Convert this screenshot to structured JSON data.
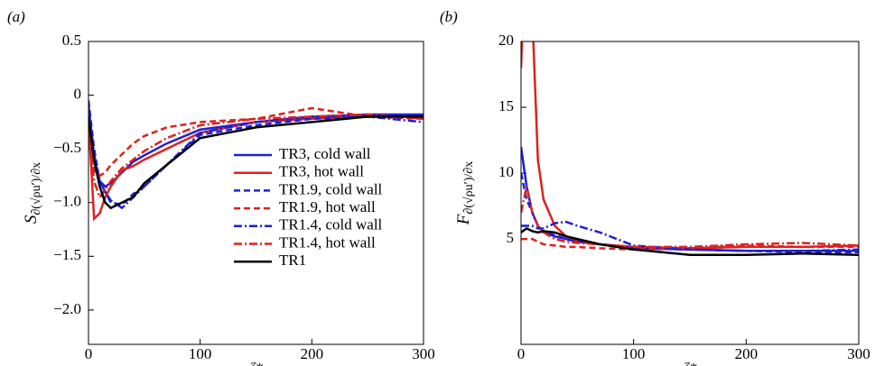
{
  "chart_data": [
    {
      "type": "line",
      "panel_label": "(a)",
      "xlabel": "ζ*",
      "ylabel": "S",
      "ylabel_sub": "∂(√ρu′)/∂x",
      "x": [
        0,
        5,
        10,
        15,
        20,
        30,
        40,
        50,
        70,
        100,
        150,
        200,
        250,
        300
      ],
      "xlim": [
        0,
        300
      ],
      "xticks": [
        0,
        100,
        200,
        300
      ],
      "ylim": [
        -2.32,
        0.5
      ],
      "yticks": [
        {
          "value": -2.0,
          "label": "−2.0"
        },
        {
          "value": -1.5,
          "label": "−1.5"
        },
        {
          "value": -1.0,
          "label": "−1.0"
        },
        {
          "value": -0.5,
          "label": "−0.5"
        },
        0,
        0.5
      ],
      "legend": "right",
      "series": [
        {
          "name": "TR3, cold wall",
          "color": "#1f1fd6",
          "dash": "solid",
          "values": [
            -0.1,
            -0.6,
            -0.8,
            -0.85,
            -0.82,
            -0.72,
            -0.62,
            -0.56,
            -0.45,
            -0.32,
            -0.25,
            -0.2,
            -0.18,
            -0.18
          ]
        },
        {
          "name": "TR3, hot wall",
          "color": "#e0201c",
          "dash": "solid",
          "values": [
            -0.2,
            -1.15,
            -1.1,
            -0.95,
            -0.85,
            -0.7,
            -0.66,
            -0.6,
            -0.5,
            -0.35,
            -0.25,
            -0.22,
            -0.2,
            -0.2
          ]
        },
        {
          "name": "TR1.9, cold wall",
          "color": "#1f1fd6",
          "dash": "dash",
          "values": [
            -0.05,
            -0.5,
            -0.8,
            -0.9,
            -1.0,
            -1.02,
            -0.92,
            -0.85,
            -0.65,
            -0.37,
            -0.28,
            -0.22,
            -0.2,
            -0.2
          ]
        },
        {
          "name": "TR1.9, hot wall",
          "color": "#e0201c",
          "dash": "dash",
          "values": [
            -0.3,
            -0.7,
            -0.75,
            -0.72,
            -0.65,
            -0.55,
            -0.45,
            -0.38,
            -0.3,
            -0.25,
            -0.22,
            -0.12,
            -0.2,
            -0.22
          ]
        },
        {
          "name": "TR1.4, cold wall",
          "color": "#1f1fd6",
          "dash": "dashdot",
          "values": [
            -0.1,
            -0.55,
            -0.8,
            -0.9,
            -0.98,
            -1.05,
            -0.95,
            -0.85,
            -0.65,
            -0.35,
            -0.25,
            -0.2,
            -0.2,
            -0.25
          ]
        },
        {
          "name": "TR1.4, hot wall",
          "color": "#e0201c",
          "dash": "dashdot",
          "values": [
            -0.25,
            -0.8,
            -0.95,
            -0.88,
            -0.8,
            -0.68,
            -0.6,
            -0.52,
            -0.4,
            -0.28,
            -0.22,
            -0.2,
            -0.18,
            -0.22
          ]
        },
        {
          "name": "TR1",
          "color": "#000000",
          "dash": "solid",
          "values": [
            -0.2,
            -0.6,
            -0.85,
            -1.0,
            -1.05,
            -1.0,
            -0.95,
            -0.82,
            -0.65,
            -0.4,
            -0.3,
            -0.25,
            -0.2,
            -0.2
          ]
        }
      ]
    },
    {
      "type": "line",
      "panel_label": "(b)",
      "xlabel": "ζ*",
      "ylabel": "F",
      "ylabel_sub": "∂(√ρu′)/∂x",
      "x": [
        0,
        5,
        10,
        15,
        20,
        30,
        40,
        50,
        70,
        100,
        150,
        200,
        250,
        300
      ],
      "xlim": [
        0,
        300
      ],
      "xticks": [
        0,
        100,
        200,
        300
      ],
      "ylim": [
        -3,
        20
      ],
      "yticks": [
        5,
        10,
        15,
        20
      ],
      "legend": false,
      "series": [
        {
          "name": "TR3, cold wall",
          "color": "#1f1fd6",
          "dash": "solid",
          "values": [
            12,
            9,
            7,
            6,
            5.5,
            5.2,
            5,
            4.8,
            4.6,
            4.3,
            4.2,
            4.1,
            4.1,
            4.1
          ]
        },
        {
          "name": "TR3, hot wall",
          "color": "#e0201c",
          "dash": "solid",
          "values": [
            18,
            30,
            22,
            11,
            8,
            6,
            5.2,
            4.9,
            4.6,
            4.4,
            4.3,
            4.4,
            4.4,
            4.5
          ]
        },
        {
          "name": "TR1.9, cold wall",
          "color": "#1f1fd6",
          "dash": "dash",
          "values": [
            10,
            8,
            7,
            6,
            5.5,
            5.3,
            5,
            4.8,
            4.6,
            4.3,
            4.2,
            4.1,
            4.0,
            4.0
          ]
        },
        {
          "name": "TR1.9, hot wall",
          "color": "#e0201c",
          "dash": "dash",
          "values": [
            5,
            5,
            5,
            4.8,
            4.6,
            4.5,
            4.4,
            4.4,
            4.3,
            4.2,
            4.3,
            4.5,
            4.4,
            4.4
          ]
        },
        {
          "name": "TR1.4, cold wall",
          "color": "#1f1fd6",
          "dash": "dashdot",
          "values": [
            6,
            6,
            6,
            5.8,
            5.8,
            6.2,
            6.3,
            6,
            5.5,
            4.5,
            4.2,
            4.1,
            4.1,
            4.2
          ]
        },
        {
          "name": "TR1.4, hot wall",
          "color": "#e0201c",
          "dash": "dashdot",
          "values": [
            7,
            9,
            7,
            6,
            5.5,
            5,
            4.8,
            4.7,
            4.6,
            4.4,
            4.4,
            4.6,
            4.7,
            4.5
          ]
        },
        {
          "name": "TR1",
          "color": "#000000",
          "dash": "solid",
          "values": [
            5.5,
            5.8,
            5.6,
            5.5,
            5.6,
            5.5,
            5.2,
            5,
            4.6,
            4.2,
            3.8,
            3.8,
            3.9,
            3.8
          ]
        }
      ]
    }
  ]
}
